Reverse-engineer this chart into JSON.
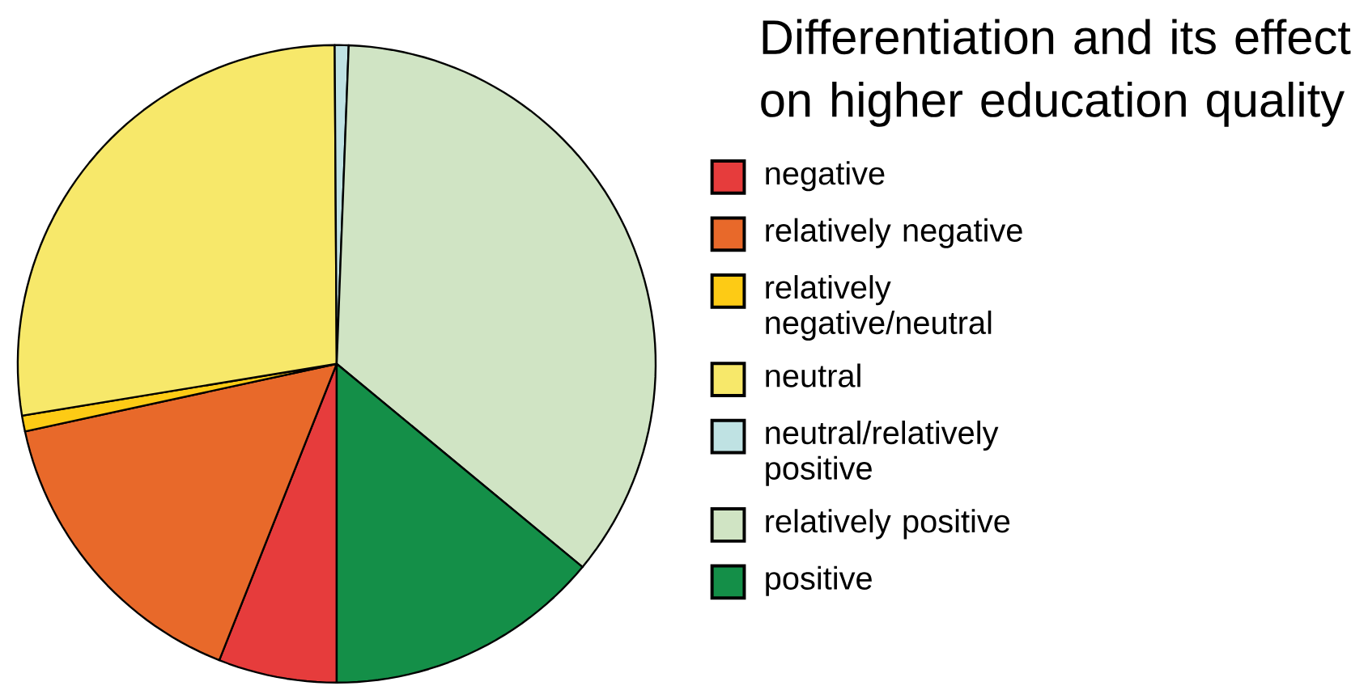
{
  "chart_data": {
    "type": "pie",
    "title": "Differentiation and its effect on higher education quality",
    "categories": [
      "negative",
      "relatively negative",
      "relatively negative/neutral",
      "neutral",
      "neutral/relatively positive",
      "relatively positive",
      "positive"
    ],
    "values": [
      6,
      15.6,
      0.8,
      27.5,
      0.7,
      35.4,
      14
    ],
    "colors": [
      "#e63c3c",
      "#e8692a",
      "#fdcb15",
      "#f7e86a",
      "#bfe2e3",
      "#d0e4c4",
      "#148f48"
    ],
    "legend": "right"
  }
}
